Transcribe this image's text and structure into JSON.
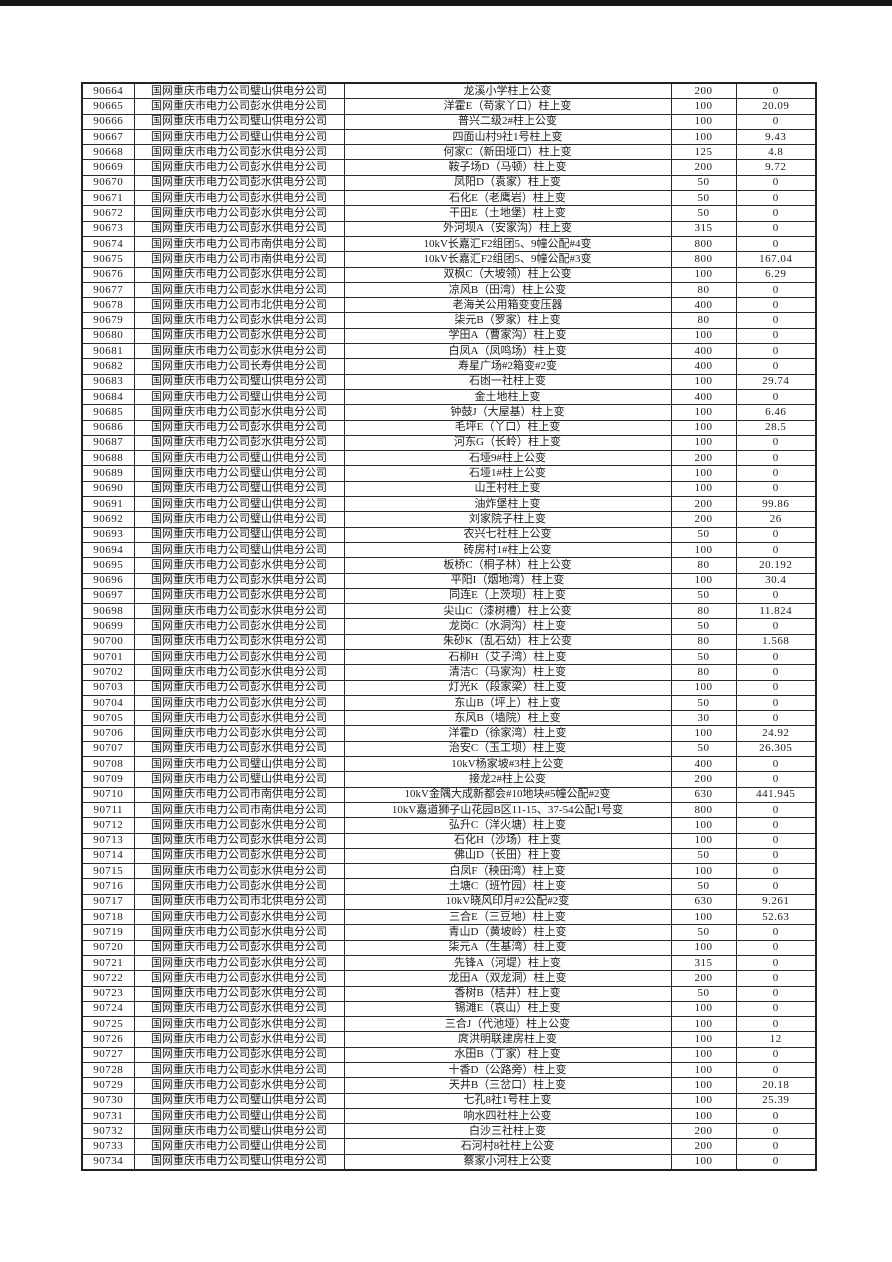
{
  "page": {
    "top_bar_color": "#161616",
    "background_color": "#ffffff"
  },
  "table": {
    "columns": [
      "id",
      "company",
      "name",
      "capacity",
      "value"
    ],
    "rows": [
      {
        "id": "90664",
        "company": "国网重庆市电力公司璧山供电分公司",
        "name": "龙溪小学柱上公变",
        "capacity": "200",
        "value": "0"
      },
      {
        "id": "90665",
        "company": "国网重庆市电力公司彭水供电分公司",
        "name": "洋霍E（苟家丫口）柱上变",
        "capacity": "100",
        "value": "20.09"
      },
      {
        "id": "90666",
        "company": "国网重庆市电力公司璧山供电分公司",
        "name": "普兴二级2#柱上公变",
        "capacity": "100",
        "value": "0"
      },
      {
        "id": "90667",
        "company": "国网重庆市电力公司璧山供电分公司",
        "name": "四面山村9社1号柱上变",
        "capacity": "100",
        "value": "9.43"
      },
      {
        "id": "90668",
        "company": "国网重庆市电力公司彭水供电分公司",
        "name": "何家C（新田垭口）柱上变",
        "capacity": "125",
        "value": "4.8"
      },
      {
        "id": "90669",
        "company": "国网重庆市电力公司彭水供电分公司",
        "name": "鞍子场D（马顿）柱上变",
        "capacity": "200",
        "value": "9.72"
      },
      {
        "id": "90670",
        "company": "国网重庆市电力公司彭水供电分公司",
        "name": "凤阳D（袁家）柱上变",
        "capacity": "50",
        "value": "0"
      },
      {
        "id": "90671",
        "company": "国网重庆市电力公司彭水供电分公司",
        "name": "石化E（老鹰岩）柱上变",
        "capacity": "50",
        "value": "0"
      },
      {
        "id": "90672",
        "company": "国网重庆市电力公司彭水供电分公司",
        "name": "干田E（土地堡）柱上变",
        "capacity": "50",
        "value": "0"
      },
      {
        "id": "90673",
        "company": "国网重庆市电力公司彭水供电分公司",
        "name": "外河坝A（安家沟）柱上变",
        "capacity": "315",
        "value": "0"
      },
      {
        "id": "90674",
        "company": "国网重庆市电力公司市南供电分公司",
        "name": "10kV长嘉汇F2组团5、9幢公配#4变",
        "capacity": "800",
        "value": "0"
      },
      {
        "id": "90675",
        "company": "国网重庆市电力公司市南供电分公司",
        "name": "10kV长嘉汇F2组团5、9幢公配#3变",
        "capacity": "800",
        "value": "167.04"
      },
      {
        "id": "90676",
        "company": "国网重庆市电力公司彭水供电分公司",
        "name": "双枫C（大坡领）柱上公变",
        "capacity": "100",
        "value": "6.29"
      },
      {
        "id": "90677",
        "company": "国网重庆市电力公司彭水供电分公司",
        "name": "凉风B（田湾）柱上公变",
        "capacity": "80",
        "value": "0"
      },
      {
        "id": "90678",
        "company": "国网重庆市电力公司市北供电分公司",
        "name": "老海关公用箱变变压器",
        "capacity": "400",
        "value": "0"
      },
      {
        "id": "90679",
        "company": "国网重庆市电力公司彭水供电分公司",
        "name": "柒元B（罗家）柱上变",
        "capacity": "80",
        "value": "0"
      },
      {
        "id": "90680",
        "company": "国网重庆市电力公司彭水供电分公司",
        "name": "学田A（曹家沟）柱上变",
        "capacity": "100",
        "value": "0"
      },
      {
        "id": "90681",
        "company": "国网重庆市电力公司彭水供电分公司",
        "name": "白凤A（凤鸣场）柱上变",
        "capacity": "400",
        "value": "0"
      },
      {
        "id": "90682",
        "company": "国网重庆市电力公司长寿供电分公司",
        "name": "寿星广场#2箱变#2变",
        "capacity": "400",
        "value": "0"
      },
      {
        "id": "90683",
        "company": "国网重庆市电力公司璧山供电分公司",
        "name": "石凼一社柱上变",
        "capacity": "100",
        "value": "29.74"
      },
      {
        "id": "90684",
        "company": "国网重庆市电力公司璧山供电分公司",
        "name": "金土地柱上变",
        "capacity": "400",
        "value": "0"
      },
      {
        "id": "90685",
        "company": "国网重庆市电力公司彭水供电分公司",
        "name": "钟鼓J（大屋基）柱上变",
        "capacity": "100",
        "value": "6.46"
      },
      {
        "id": "90686",
        "company": "国网重庆市电力公司彭水供电分公司",
        "name": "毛坪E（丫口）柱上变",
        "capacity": "100",
        "value": "28.5"
      },
      {
        "id": "90687",
        "company": "国网重庆市电力公司彭水供电分公司",
        "name": "河东G（长岭）柱上变",
        "capacity": "100",
        "value": "0"
      },
      {
        "id": "90688",
        "company": "国网重庆市电力公司璧山供电分公司",
        "name": "石垭9#柱上公变",
        "capacity": "200",
        "value": "0"
      },
      {
        "id": "90689",
        "company": "国网重庆市电力公司璧山供电分公司",
        "name": "石垭1#柱上公变",
        "capacity": "100",
        "value": "0"
      },
      {
        "id": "90690",
        "company": "国网重庆市电力公司璧山供电分公司",
        "name": "山王村柱上变",
        "capacity": "100",
        "value": "0"
      },
      {
        "id": "90691",
        "company": "国网重庆市电力公司璧山供电分公司",
        "name": "油炸堡柱上变",
        "capacity": "200",
        "value": "99.86"
      },
      {
        "id": "90692",
        "company": "国网重庆市电力公司璧山供电分公司",
        "name": "刘家院子柱上变",
        "capacity": "200",
        "value": "26"
      },
      {
        "id": "90693",
        "company": "国网重庆市电力公司璧山供电分公司",
        "name": "农兴七社柱上公变",
        "capacity": "50",
        "value": "0"
      },
      {
        "id": "90694",
        "company": "国网重庆市电力公司璧山供电分公司",
        "name": "砖房村1#柱上公变",
        "capacity": "100",
        "value": "0"
      },
      {
        "id": "90695",
        "company": "国网重庆市电力公司彭水供电分公司",
        "name": "板桥C（桐子林）柱上公变",
        "capacity": "80",
        "value": "20.192"
      },
      {
        "id": "90696",
        "company": "国网重庆市电力公司彭水供电分公司",
        "name": "平阳I（烟地湾）柱上变",
        "capacity": "100",
        "value": "30.4"
      },
      {
        "id": "90697",
        "company": "国网重庆市电力公司彭水供电分公司",
        "name": "同连E（上茨坝）柱上变",
        "capacity": "50",
        "value": "0"
      },
      {
        "id": "90698",
        "company": "国网重庆市电力公司彭水供电分公司",
        "name": "尖山C（漆树槽）柱上公变",
        "capacity": "80",
        "value": "11.824"
      },
      {
        "id": "90699",
        "company": "国网重庆市电力公司彭水供电分公司",
        "name": "龙岗C（水洞沟）柱上变",
        "capacity": "50",
        "value": "0"
      },
      {
        "id": "90700",
        "company": "国网重庆市电力公司彭水供电分公司",
        "name": "朱砂K（乱石幼）柱上公变",
        "capacity": "80",
        "value": "1.568"
      },
      {
        "id": "90701",
        "company": "国网重庆市电力公司彭水供电分公司",
        "name": "石柳H（艾子湾）柱上变",
        "capacity": "50",
        "value": "0"
      },
      {
        "id": "90702",
        "company": "国网重庆市电力公司彭水供电分公司",
        "name": "清洁C（马家沟）柱上变",
        "capacity": "80",
        "value": "0"
      },
      {
        "id": "90703",
        "company": "国网重庆市电力公司彭水供电分公司",
        "name": "灯光K（段家梁）柱上变",
        "capacity": "100",
        "value": "0"
      },
      {
        "id": "90704",
        "company": "国网重庆市电力公司彭水供电分公司",
        "name": "东山B（坪上）柱上变",
        "capacity": "50",
        "value": "0"
      },
      {
        "id": "90705",
        "company": "国网重庆市电力公司彭水供电分公司",
        "name": "东风B（墙院）柱上变",
        "capacity": "30",
        "value": "0"
      },
      {
        "id": "90706",
        "company": "国网重庆市电力公司彭水供电分公司",
        "name": "洋霍D（徐家湾）柱上变",
        "capacity": "100",
        "value": "24.92"
      },
      {
        "id": "90707",
        "company": "国网重庆市电力公司彭水供电分公司",
        "name": "治安C（玉工坝）柱上变",
        "capacity": "50",
        "value": "26.305"
      },
      {
        "id": "90708",
        "company": "国网重庆市电力公司璧山供电分公司",
        "name": "10kV杨家坡#3柱上公变",
        "capacity": "400",
        "value": "0"
      },
      {
        "id": "90709",
        "company": "国网重庆市电力公司璧山供电分公司",
        "name": "接龙2#柱上公变",
        "capacity": "200",
        "value": "0"
      },
      {
        "id": "90710",
        "company": "国网重庆市电力公司市南供电分公司",
        "name": "10kV金隅大成新都会#10地块#5幢公配#2变",
        "capacity": "630",
        "value": "441.945"
      },
      {
        "id": "90711",
        "company": "国网重庆市电力公司市南供电分公司",
        "name": "10kV嘉道狮子山花园B区11-15、37-54公配1号变",
        "capacity": "800",
        "value": "0"
      },
      {
        "id": "90712",
        "company": "国网重庆市电力公司彭水供电分公司",
        "name": "弘升C（洋火塘）柱上变",
        "capacity": "100",
        "value": "0"
      },
      {
        "id": "90713",
        "company": "国网重庆市电力公司彭水供电分公司",
        "name": "石化H（沙场）柱上变",
        "capacity": "100",
        "value": "0"
      },
      {
        "id": "90714",
        "company": "国网重庆市电力公司彭水供电分公司",
        "name": "佛山D（长田）柱上变",
        "capacity": "50",
        "value": "0"
      },
      {
        "id": "90715",
        "company": "国网重庆市电力公司彭水供电分公司",
        "name": "白凤F（秧田湾）柱上变",
        "capacity": "100",
        "value": "0"
      },
      {
        "id": "90716",
        "company": "国网重庆市电力公司彭水供电分公司",
        "name": "土塘C（班竹园）柱上变",
        "capacity": "50",
        "value": "0"
      },
      {
        "id": "90717",
        "company": "国网重庆市电力公司市北供电分公司",
        "name": "10kV晓风印月#2公配#2变",
        "capacity": "630",
        "value": "9.261"
      },
      {
        "id": "90718",
        "company": "国网重庆市电力公司彭水供电分公司",
        "name": "三合E（三豆地）柱上变",
        "capacity": "100",
        "value": "52.63"
      },
      {
        "id": "90719",
        "company": "国网重庆市电力公司彭水供电分公司",
        "name": "青山D（黄坡岭）柱上变",
        "capacity": "50",
        "value": "0"
      },
      {
        "id": "90720",
        "company": "国网重庆市电力公司彭水供电分公司",
        "name": "柒元A（生基湾）柱上变",
        "capacity": "100",
        "value": "0"
      },
      {
        "id": "90721",
        "company": "国网重庆市电力公司彭水供电分公司",
        "name": "先锋A（河堤）柱上变",
        "capacity": "315",
        "value": "0"
      },
      {
        "id": "90722",
        "company": "国网重庆市电力公司彭水供电分公司",
        "name": "龙田A（双龙洞）柱上变",
        "capacity": "200",
        "value": "0"
      },
      {
        "id": "90723",
        "company": "国网重庆市电力公司彭水供电分公司",
        "name": "香树B（桔井）柱上变",
        "capacity": "50",
        "value": "0"
      },
      {
        "id": "90724",
        "company": "国网重庆市电力公司彭水供电分公司",
        "name": "锡滩E（哀山）柱上变",
        "capacity": "100",
        "value": "0"
      },
      {
        "id": "90725",
        "company": "国网重庆市电力公司彭水供电分公司",
        "name": "三合J（代池垭）柱上公变",
        "capacity": "100",
        "value": "0"
      },
      {
        "id": "90726",
        "company": "国网重庆市电力公司彭水供电分公司",
        "name": "庹洪明联建房柱上变",
        "capacity": "100",
        "value": "12"
      },
      {
        "id": "90727",
        "company": "国网重庆市电力公司彭水供电分公司",
        "name": "水田B（丁家）柱上变",
        "capacity": "100",
        "value": "0"
      },
      {
        "id": "90728",
        "company": "国网重庆市电力公司彭水供电分公司",
        "name": "十香D（公路旁）柱上变",
        "capacity": "100",
        "value": "0"
      },
      {
        "id": "90729",
        "company": "国网重庆市电力公司彭水供电分公司",
        "name": "天井B（三岔口）柱上变",
        "capacity": "100",
        "value": "20.18"
      },
      {
        "id": "90730",
        "company": "国网重庆市电力公司璧山供电分公司",
        "name": "七孔8社1号柱上变",
        "capacity": "100",
        "value": "25.39"
      },
      {
        "id": "90731",
        "company": "国网重庆市电力公司璧山供电分公司",
        "name": "响水四社柱上公变",
        "capacity": "100",
        "value": "0"
      },
      {
        "id": "90732",
        "company": "国网重庆市电力公司璧山供电分公司",
        "name": "白沙三社柱上变",
        "capacity": "200",
        "value": "0"
      },
      {
        "id": "90733",
        "company": "国网重庆市电力公司璧山供电分公司",
        "name": "石河村8社柱上公变",
        "capacity": "200",
        "value": "0"
      },
      {
        "id": "90734",
        "company": "国网重庆市电力公司璧山供电分公司",
        "name": "蔡家小河柱上公变",
        "capacity": "100",
        "value": "0"
      }
    ]
  }
}
